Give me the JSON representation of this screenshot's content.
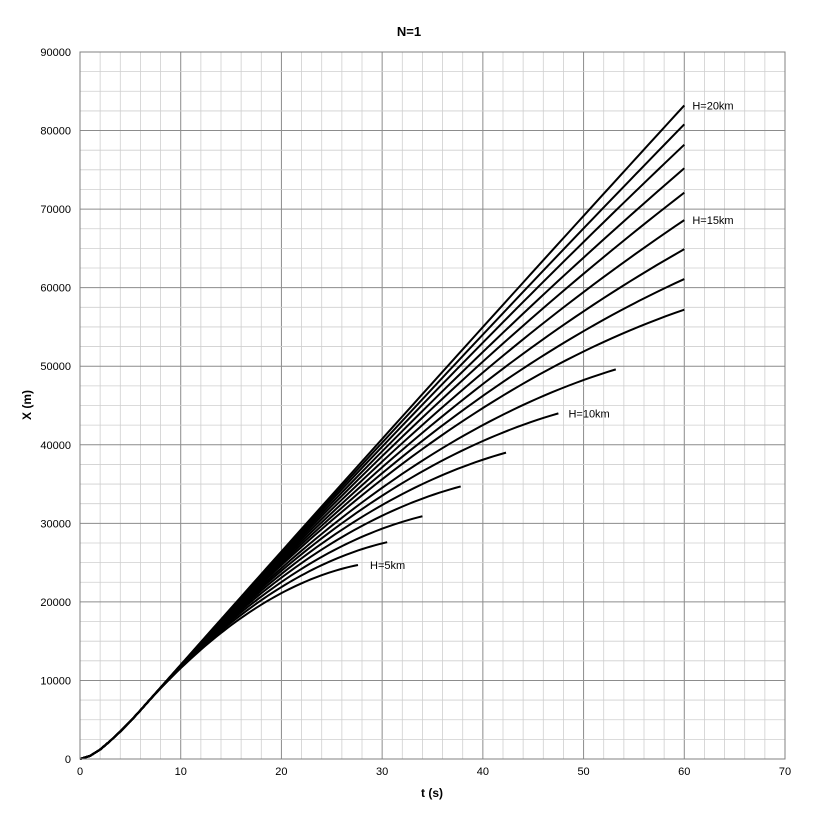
{
  "chart_data": {
    "type": "line",
    "title": "N=1",
    "xlabel": "t (s)",
    "ylabel": "X (m)",
    "xlim": [
      0,
      70
    ],
    "ylim": [
      0,
      90000
    ],
    "x_ticks": [
      0,
      10,
      20,
      30,
      40,
      50,
      60,
      70
    ],
    "y_ticks": [
      0,
      10000,
      20000,
      30000,
      40000,
      50000,
      60000,
      70000,
      80000,
      90000
    ],
    "x_minor_step": 2,
    "y_minor_step": 2500,
    "grid": true,
    "legend": "none",
    "line_color": "#000000",
    "series": [
      {
        "end": [
          27.6,
          24700
        ]
      },
      {
        "end": [
          30.5,
          27600
        ]
      },
      {
        "end": [
          34.0,
          30900
        ]
      },
      {
        "end": [
          37.8,
          34700
        ]
      },
      {
        "end": [
          42.3,
          39000
        ]
      },
      {
        "end": [
          47.5,
          44000
        ]
      },
      {
        "end": [
          53.2,
          49600
        ]
      },
      {
        "end": [
          60.0,
          57200
        ]
      },
      {
        "end": [
          60.0,
          61100
        ]
      },
      {
        "end": [
          60.0,
          64900
        ]
      },
      {
        "end": [
          60.0,
          68600
        ]
      },
      {
        "end": [
          60.0,
          72100
        ]
      },
      {
        "end": [
          60.0,
          75200
        ]
      },
      {
        "end": [
          60.0,
          78200
        ]
      },
      {
        "end": [
          60.0,
          80800
        ]
      },
      {
        "end": [
          60.0,
          83200
        ]
      }
    ],
    "annotations": [
      {
        "text": "H=20km",
        "x": 60.8,
        "y": 83200
      },
      {
        "text": "H=15km",
        "x": 60.8,
        "y": 68600
      },
      {
        "text": "H=10km",
        "x": 48.5,
        "y": 44000
      },
      {
        "text": "H=5km",
        "x": 28.8,
        "y": 24700
      }
    ]
  }
}
